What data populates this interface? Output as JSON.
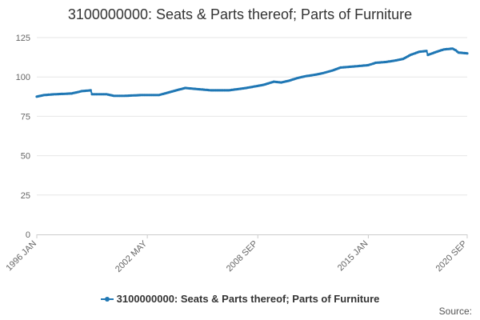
{
  "chart_data": {
    "type": "line",
    "title": "3100000000: Seats & Parts thereof; Parts of Furniture",
    "xlabel": "",
    "ylabel": "",
    "ylim": [
      0,
      125
    ],
    "yticks": [
      "0",
      "25",
      "50",
      "75",
      "100",
      "125"
    ],
    "xtick_labels": [
      "1996 JAN",
      "2002 MAY",
      "2008 SEP",
      "2015 JAN",
      "2020 SEP"
    ],
    "grid": true,
    "legend_position": "bottom-center",
    "series": [
      {
        "name": "3100000000: Seats & Parts thereof; Parts of Furniture",
        "color": "#1f77b4",
        "points": [
          {
            "x": "1996 JAN",
            "y": 87.5
          },
          {
            "x": "1996 JUN",
            "y": 88.5
          },
          {
            "x": "1997 JAN",
            "y": 89.0
          },
          {
            "x": "1998 JAN",
            "y": 89.5
          },
          {
            "x": "1998 AUG",
            "y": 91.0
          },
          {
            "x": "1999 FEB",
            "y": 91.5
          },
          {
            "x": "1999 MAR",
            "y": 89.0
          },
          {
            "x": "2000 JAN",
            "y": 89.0
          },
          {
            "x": "2000 JUN",
            "y": 88.0
          },
          {
            "x": "2001 JAN",
            "y": 88.0
          },
          {
            "x": "2002 JAN",
            "y": 88.5
          },
          {
            "x": "2003 JAN",
            "y": 88.5
          },
          {
            "x": "2003 JUL",
            "y": 90.0
          },
          {
            "x": "2004 JAN",
            "y": 91.5
          },
          {
            "x": "2004 JUL",
            "y": 93.0
          },
          {
            "x": "2005 JAN",
            "y": 92.5
          },
          {
            "x": "2006 JAN",
            "y": 91.5
          },
          {
            "x": "2007 JAN",
            "y": 91.5
          },
          {
            "x": "2008 JAN",
            "y": 93.0
          },
          {
            "x": "2009 JAN",
            "y": 95.0
          },
          {
            "x": "2009 AUG",
            "y": 97.0
          },
          {
            "x": "2010 JAN",
            "y": 96.5
          },
          {
            "x": "2010 JUN",
            "y": 97.5
          },
          {
            "x": "2011 JAN",
            "y": 99.5
          },
          {
            "x": "2011 JUN",
            "y": 100.5
          },
          {
            "x": "2012 JAN",
            "y": 101.5
          },
          {
            "x": "2012 JUN",
            "y": 102.5
          },
          {
            "x": "2012 DEC",
            "y": 104.0
          },
          {
            "x": "2013 JUN",
            "y": 106.0
          },
          {
            "x": "2014 JAN",
            "y": 106.5
          },
          {
            "x": "2015 JAN",
            "y": 107.5
          },
          {
            "x": "2015 JUN",
            "y": 109.0
          },
          {
            "x": "2016 JAN",
            "y": 109.5
          },
          {
            "x": "2016 AUG",
            "y": 110.5
          },
          {
            "x": "2017 JAN",
            "y": 111.5
          },
          {
            "x": "2017 JUN",
            "y": 114.0
          },
          {
            "x": "2017 DEC",
            "y": 116.0
          },
          {
            "x": "2018 MAY",
            "y": 116.5
          },
          {
            "x": "2018 JUN",
            "y": 114.0
          },
          {
            "x": "2018 DEC",
            "y": 116.0
          },
          {
            "x": "2019 MAY",
            "y": 117.5
          },
          {
            "x": "2019 NOV",
            "y": 118.0
          },
          {
            "x": "2020 JAN",
            "y": 117.0
          },
          {
            "x": "2020 MAR",
            "y": 115.5
          },
          {
            "x": "2020 SEP",
            "y": 115.0
          }
        ]
      }
    ]
  },
  "footer": {
    "source_label": "Source:"
  }
}
